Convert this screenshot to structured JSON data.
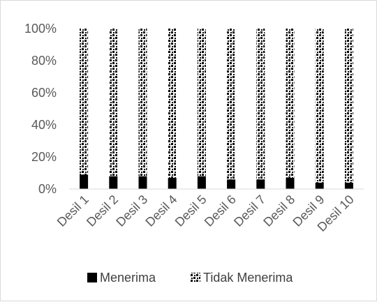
{
  "chart_data": {
    "type": "bar",
    "stacked": true,
    "normalized": true,
    "categories": [
      "Desil 1",
      "Desil 2",
      "Desil 3",
      "Desil 4",
      "Desil 5",
      "Desil 6",
      "Desil 7",
      "Desil 8",
      "Desil 9",
      "Desil 10"
    ],
    "series": [
      {
        "name": "Menerima",
        "values": [
          9,
          8,
          8,
          7,
          8,
          6,
          6,
          7,
          4,
          4
        ],
        "color": "#000000",
        "pattern": "solid"
      },
      {
        "name": "Tidak Menerima",
        "values": [
          91,
          92,
          92,
          93,
          92,
          94,
          94,
          93,
          96,
          96
        ],
        "color": "#000000",
        "pattern": "checker-dots"
      }
    ],
    "title": "",
    "xlabel": "",
    "ylabel": "",
    "ylim": [
      0,
      100
    ],
    "y_ticks": [
      "0%",
      "20%",
      "40%",
      "60%",
      "80%",
      "100%"
    ],
    "grid": false,
    "legend": "bottom"
  }
}
